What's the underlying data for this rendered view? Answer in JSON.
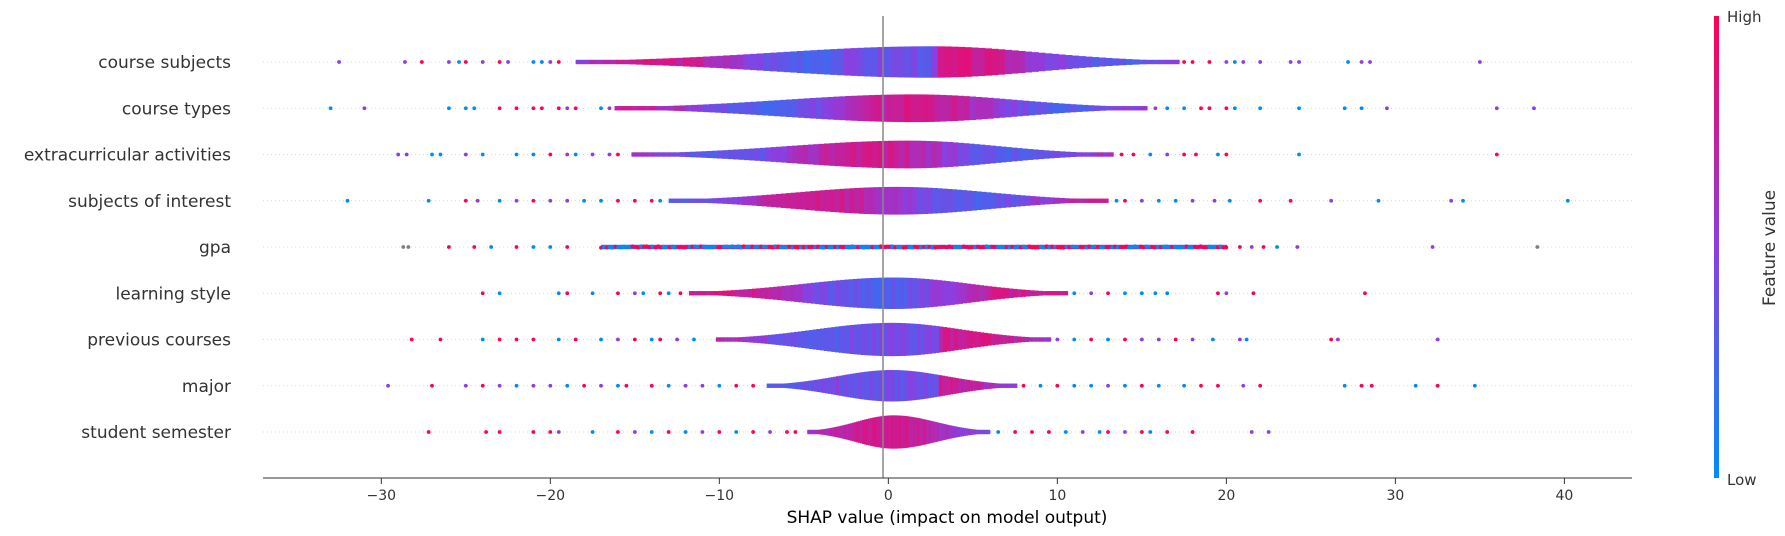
{
  "chart_data": {
    "type": "violin",
    "xlabel": "SHAP value (impact on model output)",
    "xlim": [
      -37,
      44
    ],
    "x_ticks": [
      -30,
      -20,
      -10,
      0,
      10,
      20,
      30,
      40
    ],
    "x_tick_labels": [
      "−30",
      "−20",
      "−10",
      "0",
      "10",
      "20",
      "30",
      "40"
    ],
    "colorbar": {
      "label": "Feature value",
      "high_label": "High",
      "low_label": "Low",
      "high_color": "#ff0052",
      "low_color": "#008bfb"
    },
    "features": [
      {
        "name": "course subjects",
        "range": [
          -18.5,
          17.2
        ],
        "max_half_width": 0.34,
        "peak": 2.5,
        "outliers": [
          -32.5,
          -28.6,
          -27.6,
          -26,
          -25.4,
          -25,
          -24,
          -23,
          -22.5,
          -21,
          -20.5,
          -20,
          -19.5,
          17.5,
          18,
          19,
          20,
          20.5,
          21,
          22,
          23.8,
          24.3,
          27.2,
          28,
          28.5,
          35
        ]
      },
      {
        "name": "course types",
        "range": [
          -16.2,
          15.3
        ],
        "max_half_width": 0.3,
        "peak": 1.5,
        "outliers": [
          -33,
          -31,
          -26,
          -25,
          -24.5,
          -23,
          -22,
          -21,
          -20.5,
          -19.5,
          -19,
          -18.5,
          -17,
          -16.5,
          15.8,
          16.5,
          17.5,
          18.5,
          19,
          20,
          20.5,
          22,
          24.3,
          27,
          28,
          29.5,
          36,
          38.2
        ]
      },
      {
        "name": "extracurricular activities",
        "range": [
          -15.2,
          13.3
        ],
        "max_half_width": 0.3,
        "peak": 1.2,
        "outliers": [
          -29,
          -28.5,
          -27,
          -26.5,
          -25,
          -24,
          -22,
          -21,
          -20,
          -19,
          -18.5,
          -17.5,
          -16.5,
          -16,
          13.8,
          14.5,
          15.5,
          16.5,
          17.5,
          18.2,
          19.5,
          20,
          24.3,
          36
        ]
      },
      {
        "name": "subjects of interest",
        "range": [
          -13,
          13
        ],
        "max_half_width": 0.3,
        "peak": 0.5,
        "outliers": [
          -32,
          -27.2,
          -25,
          -24.3,
          -23,
          -22,
          -21,
          -20,
          -19,
          -18,
          -17,
          -16,
          -15,
          -14,
          -13.5,
          13.5,
          14,
          15,
          16,
          17,
          18,
          19.3,
          20.2,
          22,
          23.8,
          26.2,
          29,
          33.3,
          34,
          40.2
        ]
      },
      {
        "name": "gpa",
        "range": [
          -17,
          20
        ],
        "max_half_width": 0.045,
        "peak": 0,
        "outliers": [
          -28.7,
          -28.4,
          -26,
          -24.5,
          -23.5,
          -22,
          -21,
          -20,
          -19,
          20.8,
          21.5,
          22.2,
          23,
          24.2,
          32.2,
          38.4
        ]
      },
      {
        "name": "learning style",
        "range": [
          -11.8,
          10.6
        ],
        "max_half_width": 0.34,
        "peak": 0.3,
        "outliers": [
          -24,
          -23,
          -19.5,
          -19,
          -17.5,
          -16,
          -15,
          -14.5,
          -13.5,
          -13,
          -12.3,
          11,
          12,
          13,
          14,
          15,
          15.8,
          16.5,
          19.5,
          20,
          21.6,
          28.2
        ]
      },
      {
        "name": "previous courses",
        "range": [
          -10.2,
          9.6
        ],
        "max_half_width": 0.36,
        "peak": 0.2,
        "outliers": [
          -28.2,
          -26.5,
          -24,
          -23,
          -22,
          -21,
          -19.5,
          -18.5,
          -17,
          -16,
          -15,
          -14,
          -13.5,
          -12.5,
          -11.5,
          10,
          11,
          12,
          13,
          14,
          15,
          16,
          17,
          18,
          19.2,
          20.8,
          21.2,
          26.2,
          26.6,
          32.5
        ]
      },
      {
        "name": "major",
        "range": [
          -7.2,
          7.6
        ],
        "max_half_width": 0.34,
        "peak": 0.2,
        "outliers": [
          -29.6,
          -27,
          -25,
          -24,
          -23,
          -22,
          -21,
          -20,
          -19,
          -18,
          -17,
          -16,
          -15.5,
          -14,
          -13,
          -12,
          -11,
          -10,
          -9,
          -8,
          8,
          9,
          10,
          11,
          12,
          13,
          14,
          15,
          16,
          17.5,
          18.5,
          19.5,
          21,
          22,
          27,
          28,
          28.6,
          31.2,
          32.5,
          34.7
        ]
      },
      {
        "name": "student semester",
        "range": [
          -4.8,
          6
        ],
        "max_half_width": 0.36,
        "peak": 0.3,
        "outliers": [
          -27.2,
          -23.8,
          -23,
          -21,
          -20,
          -19.5,
          -17.5,
          -16,
          -15,
          -14,
          -13,
          -12,
          -11,
          -10,
          -9,
          -8,
          -7,
          -6,
          -5.5,
          6.5,
          7.5,
          8.5,
          9.5,
          10.5,
          11.5,
          12.5,
          13,
          14,
          15,
          15.5,
          16.5,
          18,
          21.5,
          22.5
        ]
      }
    ]
  }
}
